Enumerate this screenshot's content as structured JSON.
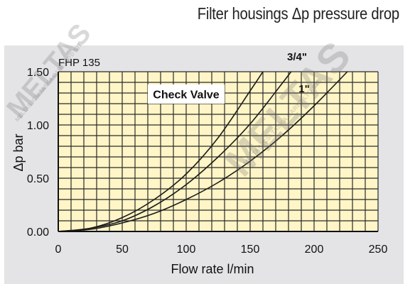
{
  "title": "Filter housings Δp pressure drop",
  "watermark": "MELTAS",
  "watermark_sub": "MELTAS ICSI TASKA CARET LTD STI",
  "chart_data": {
    "type": "line",
    "panel_label": "FHP 135",
    "annotation": "Check Valve",
    "xlabel": "Flow rate l/min",
    "ylabel": "Δp bar",
    "xlim": [
      0,
      250
    ],
    "ylim": [
      0,
      1.5
    ],
    "x_ticks": [
      0,
      50,
      100,
      150,
      200,
      250
    ],
    "x_tick_labels": [
      "0",
      "50",
      "100",
      "150",
      "200",
      "250"
    ],
    "y_ticks": [
      0,
      0.5,
      1.0,
      1.5
    ],
    "y_tick_labels": [
      "0.00",
      "0.50",
      "1.00",
      "1.50"
    ],
    "grid": true,
    "series": [
      {
        "name": "3/4\"",
        "x": [
          0,
          25,
          50,
          75,
          100,
          125,
          150,
          160
        ],
        "y": [
          0,
          0.03,
          0.13,
          0.3,
          0.54,
          0.88,
          1.32,
          1.5
        ]
      },
      {
        "name": "1\"",
        "x": [
          0,
          25,
          50,
          75,
          100,
          125,
          150,
          175,
          182
        ],
        "y": [
          0,
          0.03,
          0.1,
          0.24,
          0.44,
          0.7,
          1.01,
          1.39,
          1.5
        ]
      },
      {
        "name": "",
        "x": [
          0,
          25,
          50,
          75,
          100,
          125,
          150,
          175,
          200,
          226
        ],
        "y": [
          0,
          0.02,
          0.08,
          0.17,
          0.3,
          0.46,
          0.66,
          0.9,
          1.18,
          1.5
        ]
      }
    ],
    "colors": {
      "line": "#1a1a1a",
      "grid": "#2a2a2a",
      "plot_bg": "#fff5c6",
      "panel_bg": "#e4e4e6",
      "label_bg": "#ffffff"
    }
  }
}
